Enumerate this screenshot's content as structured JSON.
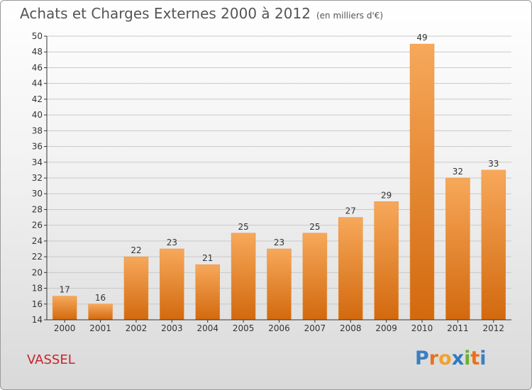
{
  "header": {
    "title": "Achats et Charges Externes 2000 à 2012",
    "unit": "(en milliers d'€)"
  },
  "place": "VASSEL",
  "logo": {
    "letters": [
      "P",
      "r",
      "o",
      "x",
      "i",
      "t",
      "i"
    ],
    "colors": [
      "#3a7fc1",
      "#e9711c",
      "#f2a12c",
      "#2e79c2",
      "#6bb22e",
      "#e9711c",
      "#3a7fc1"
    ]
  },
  "colors": {
    "bar_top": "#f7a85a",
    "bar_bottom": "#d2690e",
    "grid": "#c9c9c9",
    "axis": "#333333",
    "text": "#333333"
  },
  "chart_data": {
    "type": "bar",
    "categories": [
      "2000",
      "2001",
      "2002",
      "2003",
      "2004",
      "2005",
      "2006",
      "2007",
      "2008",
      "2009",
      "2010",
      "2011",
      "2012"
    ],
    "values": [
      17,
      16,
      22,
      23,
      21,
      25,
      23,
      25,
      27,
      29,
      49,
      32,
      33
    ],
    "title": "Achats et Charges Externes 2000 à 2012",
    "xlabel": "",
    "ylabel": "",
    "ylim": [
      14,
      50
    ],
    "yticks": [
      14,
      16,
      18,
      20,
      22,
      24,
      26,
      28,
      30,
      32,
      34,
      36,
      38,
      40,
      42,
      44,
      46,
      48,
      50
    ],
    "grid": true,
    "legend": "none"
  }
}
